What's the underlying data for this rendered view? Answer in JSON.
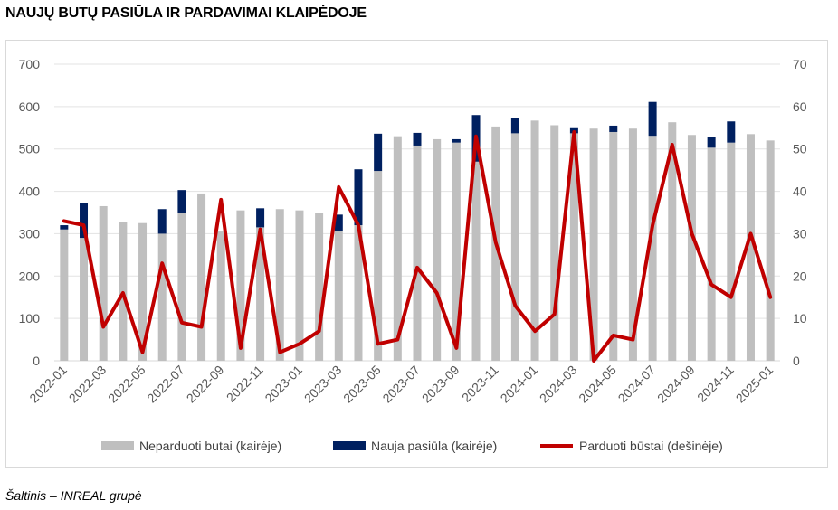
{
  "title": "NAUJŲ BUTŲ PASIŪLA IR PARDAVIMAI KLAIPĖDOJE",
  "source": "Šaltinis – INREAL grupė",
  "chart_data": {
    "type": "bar",
    "subtype": "stacked-bar-with-line-secondary-axis",
    "categories": [
      "2022-01",
      "2022-02",
      "2022-03",
      "2022-04",
      "2022-05",
      "2022-06",
      "2022-07",
      "2022-08",
      "2022-09",
      "2022-10",
      "2022-11",
      "2022-12",
      "2023-01",
      "2023-02",
      "2023-03",
      "2023-04",
      "2023-05",
      "2023-06",
      "2023-07",
      "2023-08",
      "2023-09",
      "2023-10",
      "2023-11",
      "2023-12",
      "2024-01",
      "2024-02",
      "2024-03",
      "2024-04",
      "2024-05",
      "2024-06",
      "2024-07",
      "2024-08",
      "2024-09",
      "2024-10",
      "2024-11",
      "2024-12",
      "2025-01"
    ],
    "tick_labels": [
      "2022-01",
      "2022-03",
      "2022-05",
      "2022-07",
      "2022-09",
      "2022-11",
      "2023-01",
      "2023-03",
      "2023-05",
      "2023-07",
      "2023-09",
      "2023-11",
      "2024-01",
      "2024-03",
      "2024-05",
      "2024-07",
      "2024-09",
      "2024-11",
      "2025-01"
    ],
    "series": [
      {
        "name": "Neparduoti butai (kairėje)",
        "type": "bar",
        "axis": "left",
        "color": "#bfbfbf",
        "values": [
          310,
          290,
          365,
          327,
          325,
          300,
          350,
          395,
          305,
          355,
          315,
          358,
          355,
          348,
          307,
          320,
          448,
          530,
          508,
          523,
          515,
          470,
          553,
          537,
          567,
          556,
          537,
          548,
          540,
          548,
          531,
          563,
          533,
          503,
          515,
          535,
          520
        ]
      },
      {
        "name": "Nauja pasiūla (kairėje)",
        "type": "bar",
        "axis": "left",
        "color": "#002060",
        "values": [
          10,
          83,
          0,
          0,
          0,
          58,
          53,
          0,
          0,
          0,
          45,
          0,
          0,
          0,
          38,
          132,
          88,
          0,
          30,
          0,
          8,
          110,
          0,
          37,
          0,
          0,
          12,
          0,
          15,
          0,
          80,
          0,
          0,
          25,
          50,
          0,
          0
        ]
      },
      {
        "name": "Parduoti būstai (dešinėje)",
        "type": "line",
        "axis": "right",
        "color": "#c00000",
        "values": [
          33,
          32,
          8,
          16,
          2,
          23,
          9,
          8,
          38,
          3,
          31,
          2,
          4,
          7,
          41,
          32,
          4,
          5,
          22,
          16,
          3,
          53,
          28,
          13,
          7,
          11,
          54,
          0,
          6,
          5,
          32,
          51,
          30,
          18,
          15,
          30,
          15
        ]
      }
    ],
    "y_left": {
      "min": 0,
      "max": 700,
      "ticks": [
        0,
        100,
        200,
        300,
        400,
        500,
        600,
        700
      ]
    },
    "y_right": {
      "min": 0,
      "max": 70,
      "ticks": [
        0,
        10,
        20,
        30,
        40,
        50,
        60,
        70
      ]
    },
    "grid": true,
    "legend": "bottom"
  }
}
